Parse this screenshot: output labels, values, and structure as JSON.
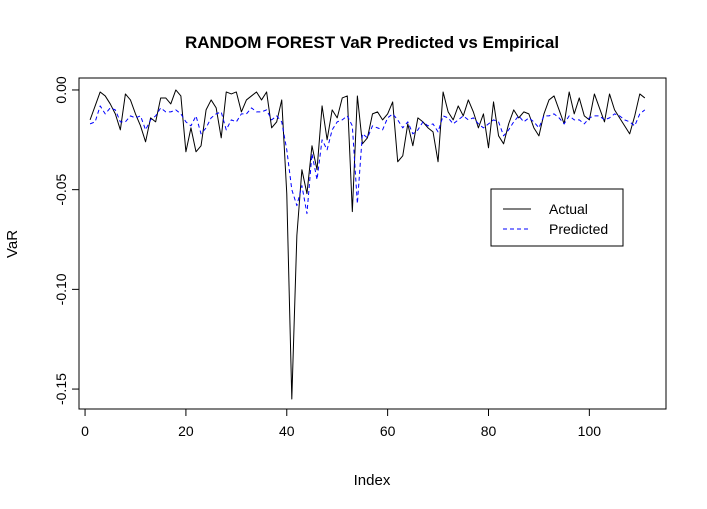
{
  "chart_data": {
    "type": "line",
    "title": "RANDOM FOREST VaR Predicted vs Empirical",
    "xlabel": "Index",
    "ylabel": "VaR",
    "xlim": [
      1,
      111
    ],
    "ylim": [
      -0.16,
      0.006
    ],
    "x_ticks": [
      0,
      20,
      40,
      60,
      80,
      100
    ],
    "y_ticks": [
      0.0,
      -0.05,
      -0.1,
      -0.15
    ],
    "x_tick_labels": [
      "0",
      "20",
      "40",
      "60",
      "80",
      "100"
    ],
    "y_tick_labels": [
      "0.00",
      "-0.05",
      "-0.10",
      "-0.15"
    ],
    "grid": false,
    "legend_position": "right",
    "series": [
      {
        "name": "Actual",
        "color": "#000000",
        "dash": "solid",
        "values": [
          -0.015,
          -0.008,
          -0.001,
          -0.003,
          -0.007,
          -0.012,
          -0.02,
          -0.002,
          -0.005,
          -0.012,
          -0.018,
          -0.026,
          -0.014,
          -0.016,
          -0.004,
          -0.004,
          -0.007,
          0.0,
          -0.003,
          -0.031,
          -0.019,
          -0.031,
          -0.028,
          -0.01,
          -0.005,
          -0.009,
          -0.024,
          -0.001,
          -0.002,
          -0.001,
          -0.011,
          -0.005,
          -0.003,
          -0.001,
          -0.005,
          -0.001,
          -0.019,
          -0.016,
          -0.005,
          -0.052,
          -0.155,
          -0.073,
          -0.04,
          -0.052,
          -0.028,
          -0.04,
          -0.008,
          -0.025,
          -0.01,
          -0.014,
          -0.004,
          -0.003,
          -0.061,
          -0.003,
          -0.027,
          -0.024,
          -0.012,
          -0.011,
          -0.015,
          -0.012,
          -0.006,
          -0.036,
          -0.033,
          -0.017,
          -0.028,
          -0.014,
          -0.016,
          -0.019,
          -0.021,
          -0.036,
          -0.001,
          -0.011,
          -0.015,
          -0.008,
          -0.013,
          -0.005,
          -0.011,
          -0.019,
          -0.012,
          -0.029,
          -0.006,
          -0.023,
          -0.027,
          -0.017,
          -0.01,
          -0.014,
          -0.011,
          -0.012,
          -0.019,
          -0.023,
          -0.012,
          -0.005,
          -0.003,
          -0.01,
          -0.017,
          -0.001,
          -0.012,
          -0.004,
          -0.013,
          -0.015,
          -0.002,
          -0.009,
          -0.016,
          -0.002,
          -0.01,
          -0.014,
          -0.018,
          -0.022,
          -0.013,
          -0.002,
          -0.004
        ]
      },
      {
        "name": "Predicted",
        "color": "#0000FF",
        "dash": "dashed",
        "values": [
          -0.017,
          -0.016,
          -0.008,
          -0.012,
          -0.009,
          -0.01,
          -0.016,
          -0.016,
          -0.013,
          -0.014,
          -0.013,
          -0.02,
          -0.015,
          -0.013,
          -0.009,
          -0.011,
          -0.011,
          -0.01,
          -0.012,
          -0.016,
          -0.018,
          -0.013,
          -0.022,
          -0.019,
          -0.014,
          -0.012,
          -0.011,
          -0.02,
          -0.015,
          -0.016,
          -0.012,
          -0.012,
          -0.009,
          -0.011,
          -0.011,
          -0.01,
          -0.015,
          -0.013,
          -0.016,
          -0.03,
          -0.05,
          -0.058,
          -0.048,
          -0.062,
          -0.032,
          -0.045,
          -0.025,
          -0.03,
          -0.02,
          -0.016,
          -0.015,
          -0.013,
          -0.018,
          -0.057,
          -0.022,
          -0.024,
          -0.018,
          -0.019,
          -0.02,
          -0.014,
          -0.012,
          -0.015,
          -0.019,
          -0.016,
          -0.022,
          -0.02,
          -0.016,
          -0.018,
          -0.017,
          -0.021,
          -0.013,
          -0.014,
          -0.017,
          -0.015,
          -0.013,
          -0.015,
          -0.014,
          -0.017,
          -0.019,
          -0.017,
          -0.015,
          -0.016,
          -0.023,
          -0.02,
          -0.016,
          -0.013,
          -0.016,
          -0.014,
          -0.016,
          -0.019,
          -0.013,
          -0.013,
          -0.012,
          -0.014,
          -0.017,
          -0.013,
          -0.015,
          -0.015,
          -0.017,
          -0.014,
          -0.013,
          -0.013,
          -0.015,
          -0.014,
          -0.012,
          -0.013,
          -0.015,
          -0.016,
          -0.018,
          -0.012,
          -0.01
        ]
      }
    ]
  }
}
